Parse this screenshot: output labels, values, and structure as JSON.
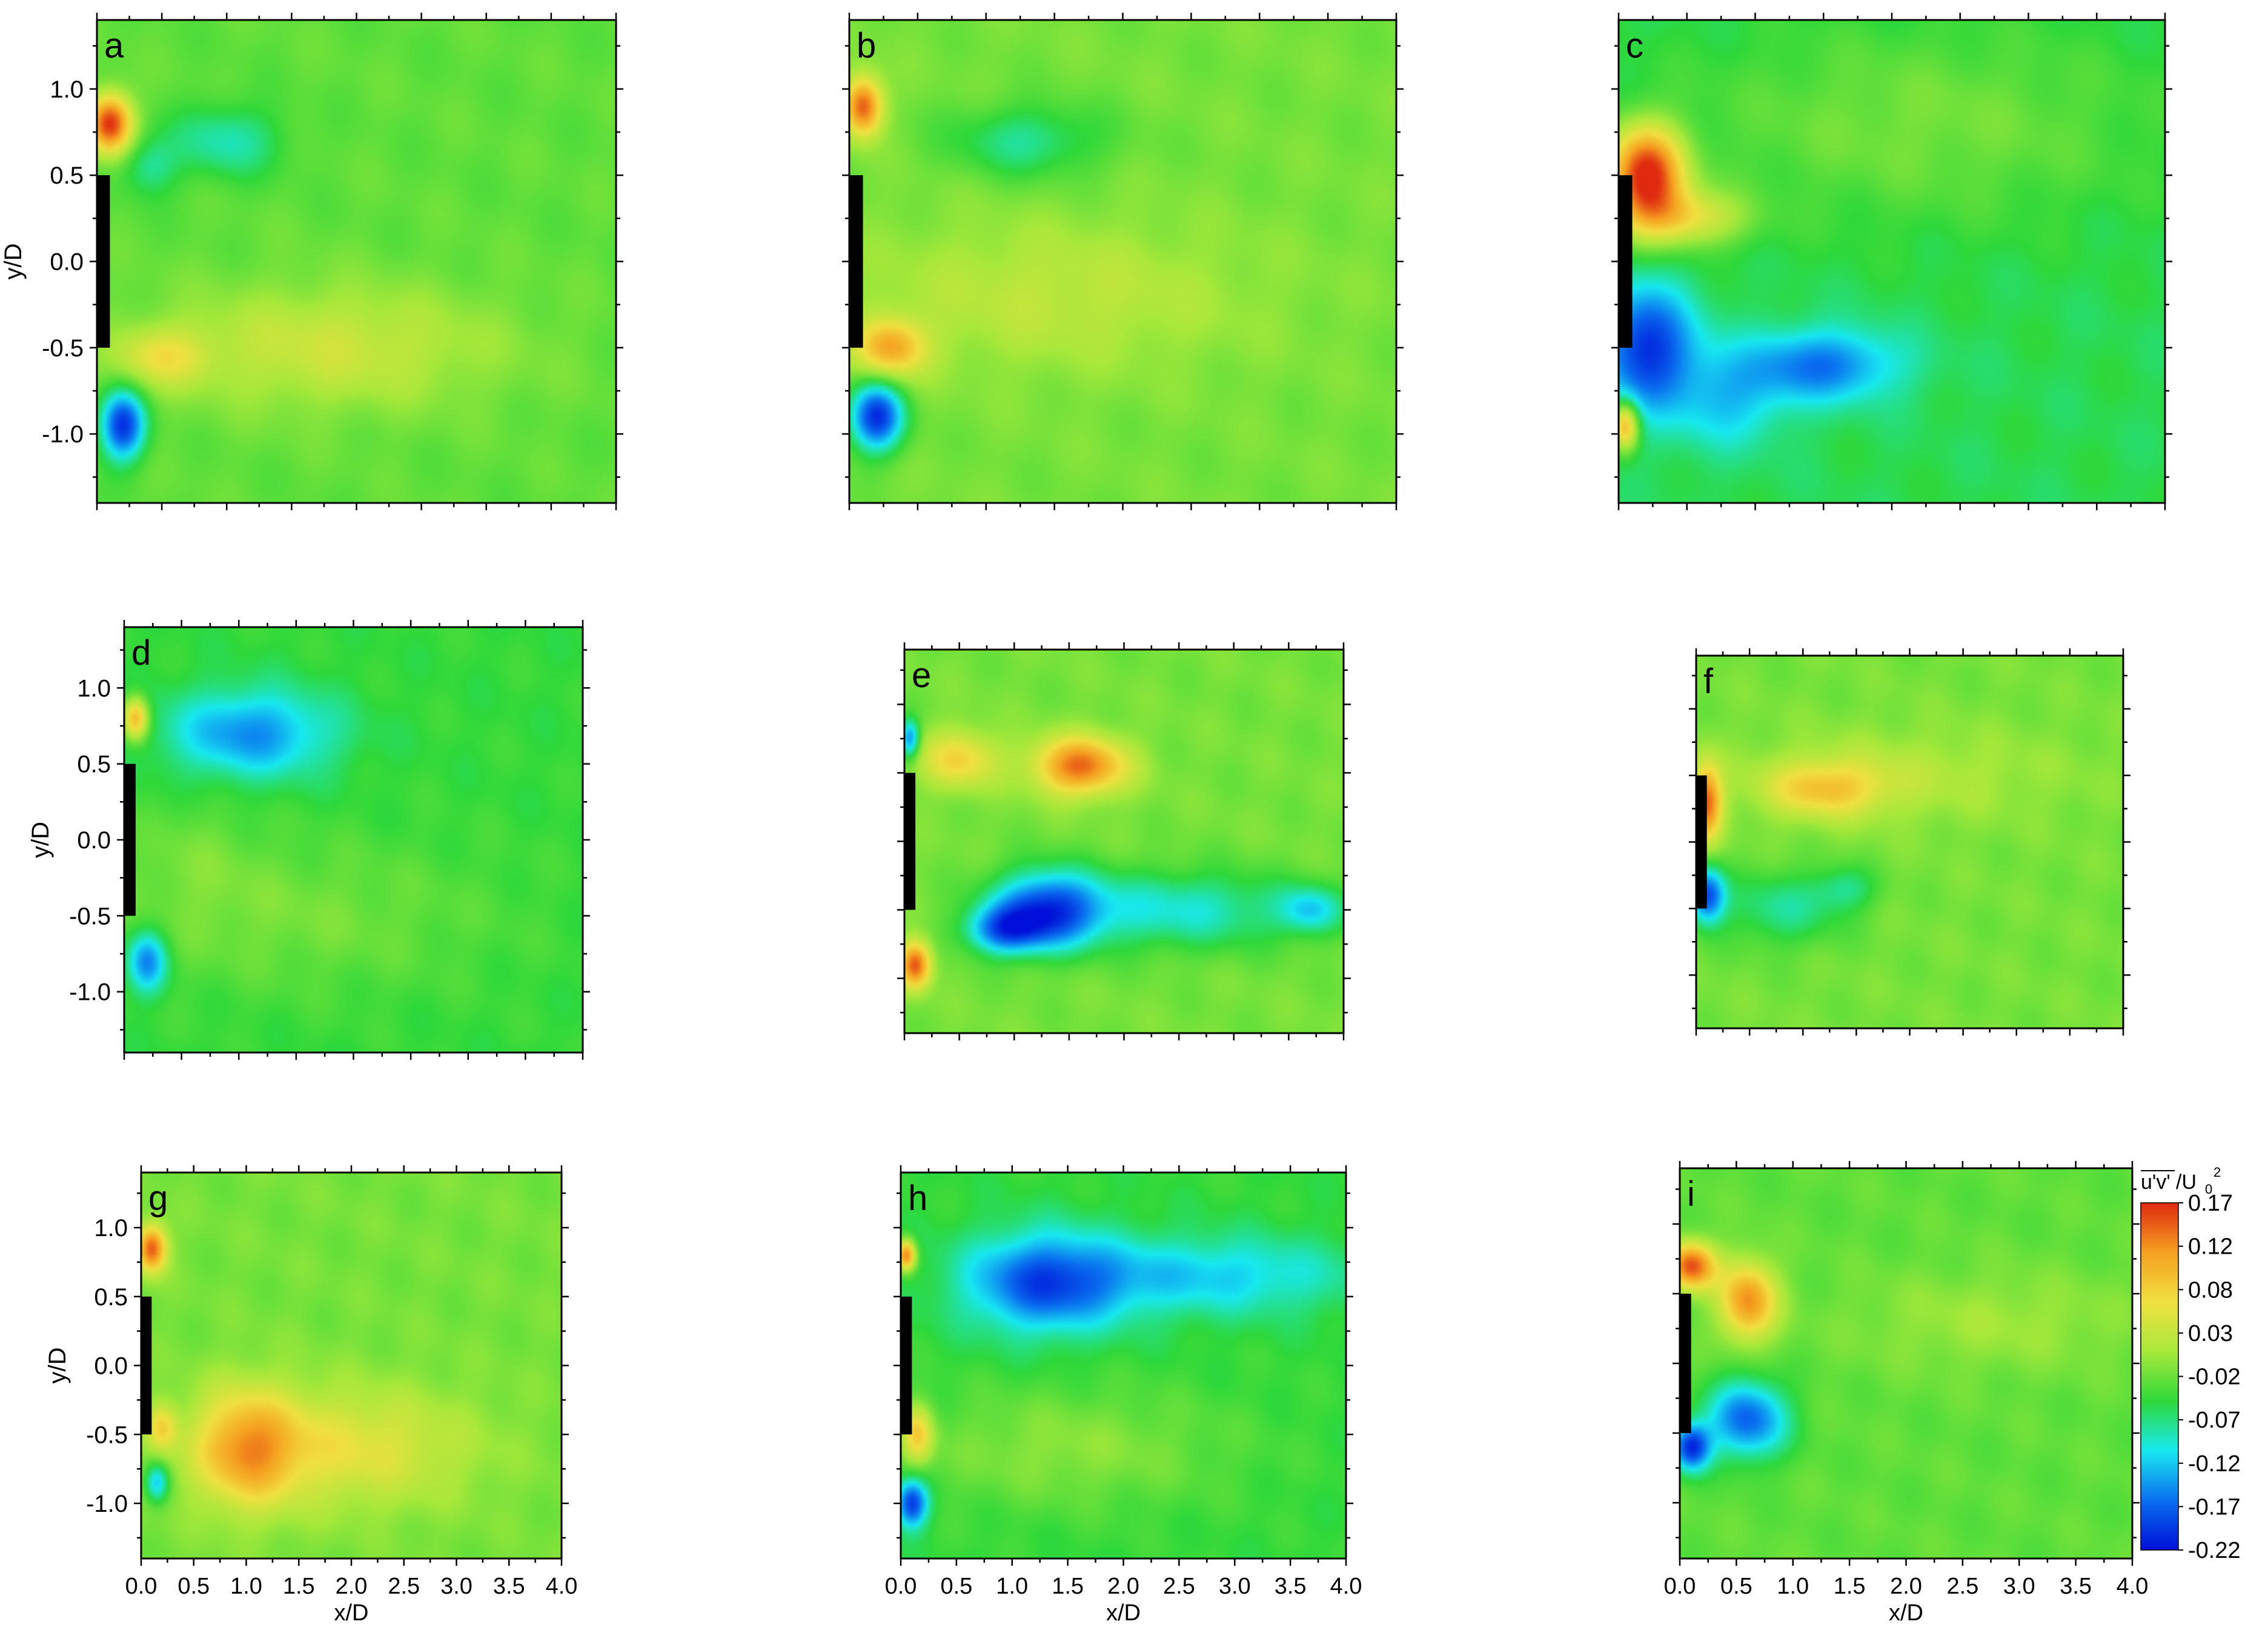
{
  "chart_data": {
    "type": "heatmap",
    "quantity": "u'v'/U0^2",
    "colorbar": {
      "title_main": "u'v'",
      "title_rest": "/U",
      "title_sub": "0",
      "title_sup": "2",
      "ticks": [
        "0.17",
        "0.12",
        "0.08",
        "0.03",
        "-0.02",
        "-0.07",
        "-0.12",
        "-0.17",
        "-0.22"
      ],
      "min": -0.22,
      "max": 0.17,
      "colors": [
        "#0010d8",
        "#0a6ff0",
        "#18e8f0",
        "#2ed83a",
        "#a8e83a",
        "#f0e040",
        "#f5a020",
        "#e02a10"
      ]
    },
    "xlabel": "x/D",
    "ylabel": "y/D",
    "xlim": [
      0,
      4
    ],
    "ylim": [
      -1.4,
      1.4
    ],
    "x_ticks": [
      "0.0",
      "0.5",
      "1.0",
      "1.5",
      "2.0",
      "2.5",
      "3.0",
      "3.5",
      "4.0"
    ],
    "y_ticks": [
      "1.0",
      "0.5",
      "0.0",
      "-0.5",
      "-1.0"
    ],
    "plate": {
      "x": [
        0,
        0.1
      ],
      "y": [
        -0.5,
        0.5
      ]
    },
    "panels": [
      {
        "label": "a",
        "background": -0.03,
        "blobs": [
          {
            "x": 0.1,
            "y": 0.8,
            "v": 0.17,
            "rx": 0.12,
            "ry": 0.12
          },
          {
            "x": 0.2,
            "y": -0.95,
            "v": -0.2,
            "rx": 0.12,
            "ry": 0.14
          },
          {
            "x": 1.0,
            "y": 0.7,
            "v": -0.09,
            "rx": 0.3,
            "ry": 0.15
          },
          {
            "x": 0.4,
            "y": 0.55,
            "v": -0.08,
            "rx": 0.15,
            "ry": 0.12
          },
          {
            "x": 1.8,
            "y": -0.5,
            "v": 0.03,
            "rx": 0.9,
            "ry": 0.25
          },
          {
            "x": 0.5,
            "y": -0.55,
            "v": 0.04,
            "rx": 0.25,
            "ry": 0.12
          }
        ]
      },
      {
        "label": "b",
        "background": -0.02,
        "blobs": [
          {
            "x": 0.1,
            "y": 0.9,
            "v": 0.15,
            "rx": 0.1,
            "ry": 0.12
          },
          {
            "x": 0.3,
            "y": -0.5,
            "v": 0.1,
            "rx": 0.18,
            "ry": 0.12
          },
          {
            "x": 0.2,
            "y": -0.9,
            "v": -0.2,
            "rx": 0.14,
            "ry": 0.14
          },
          {
            "x": 1.3,
            "y": 0.7,
            "v": -0.08,
            "rx": 0.4,
            "ry": 0.15
          },
          {
            "x": 1.5,
            "y": -0.2,
            "v": 0.02,
            "rx": 1.0,
            "ry": 0.3
          }
        ]
      },
      {
        "label": "c",
        "background": -0.06,
        "blobs": [
          {
            "x": 0.2,
            "y": 0.5,
            "v": 0.17,
            "rx": 0.2,
            "ry": 0.2
          },
          {
            "x": 0.5,
            "y": 0.25,
            "v": 0.04,
            "rx": 0.3,
            "ry": 0.12
          },
          {
            "x": 0.2,
            "y": -0.5,
            "v": -0.2,
            "rx": 0.25,
            "ry": 0.25
          },
          {
            "x": 1.5,
            "y": -0.6,
            "v": -0.16,
            "rx": 0.4,
            "ry": 0.15
          },
          {
            "x": 0.8,
            "y": -0.8,
            "v": -0.12,
            "rx": 0.3,
            "ry": 0.2
          },
          {
            "x": 0.05,
            "y": -0.95,
            "v": 0.1,
            "rx": 0.07,
            "ry": 0.1
          },
          {
            "x": 2.2,
            "y": 0.8,
            "v": -0.02,
            "rx": 1.2,
            "ry": 0.4
          }
        ]
      },
      {
        "label": "d",
        "background": -0.05,
        "blobs": [
          {
            "x": 0.1,
            "y": 0.8,
            "v": 0.1,
            "rx": 0.08,
            "ry": 0.1
          },
          {
            "x": 1.1,
            "y": 0.7,
            "v": -0.15,
            "rx": 0.5,
            "ry": 0.2
          },
          {
            "x": 0.2,
            "y": -0.8,
            "v": -0.16,
            "rx": 0.12,
            "ry": 0.14
          },
          {
            "x": 1.5,
            "y": -0.5,
            "v": -0.02,
            "rx": 1.2,
            "ry": 0.35
          },
          {
            "x": 0.6,
            "y": -0.1,
            "v": -0.03,
            "rx": 0.4,
            "ry": 0.3
          }
        ]
      },
      {
        "label": "e",
        "background": -0.02,
        "blobs": [
          {
            "x": 1.6,
            "y": 0.55,
            "v": 0.14,
            "rx": 0.3,
            "ry": 0.15
          },
          {
            "x": 0.5,
            "y": 0.6,
            "v": 0.07,
            "rx": 0.25,
            "ry": 0.15
          },
          {
            "x": 1.3,
            "y": -0.5,
            "v": -0.18,
            "rx": 0.35,
            "ry": 0.2
          },
          {
            "x": 0.9,
            "y": -0.65,
            "v": -0.14,
            "rx": 0.25,
            "ry": 0.12
          },
          {
            "x": 0.1,
            "y": -0.9,
            "v": 0.15,
            "rx": 0.1,
            "ry": 0.12
          },
          {
            "x": 0.05,
            "y": 0.75,
            "v": -0.15,
            "rx": 0.06,
            "ry": 0.1
          },
          {
            "x": 2.5,
            "y": -0.5,
            "v": -0.1,
            "rx": 0.8,
            "ry": 0.2
          },
          {
            "x": 3.7,
            "y": -0.5,
            "v": -0.1,
            "rx": 0.2,
            "ry": 0.12
          }
        ]
      },
      {
        "label": "f",
        "background": -0.02,
        "blobs": [
          {
            "x": 0.1,
            "y": 0.3,
            "v": 0.14,
            "rx": 0.1,
            "ry": 0.2
          },
          {
            "x": 1.2,
            "y": 0.4,
            "v": 0.07,
            "rx": 0.4,
            "ry": 0.15
          },
          {
            "x": 0.1,
            "y": -0.4,
            "v": -0.18,
            "rx": 0.12,
            "ry": 0.15
          },
          {
            "x": 0.8,
            "y": -0.5,
            "v": -0.08,
            "rx": 0.4,
            "ry": 0.2
          },
          {
            "x": 1.4,
            "y": -0.35,
            "v": -0.07,
            "rx": 0.2,
            "ry": 0.12
          },
          {
            "x": 2.0,
            "y": 0.5,
            "v": 0.01,
            "rx": 1.0,
            "ry": 0.25
          }
        ]
      },
      {
        "label": "g",
        "background": -0.02,
        "blobs": [
          {
            "x": 0.1,
            "y": 0.85,
            "v": 0.15,
            "rx": 0.1,
            "ry": 0.12
          },
          {
            "x": 1.0,
            "y": -0.6,
            "v": 0.1,
            "rx": 0.35,
            "ry": 0.3
          },
          {
            "x": 2.0,
            "y": -0.6,
            "v": 0.05,
            "rx": 0.8,
            "ry": 0.3
          },
          {
            "x": 0.15,
            "y": -0.85,
            "v": -0.12,
            "rx": 0.08,
            "ry": 0.1
          },
          {
            "x": 0.2,
            "y": -0.45,
            "v": 0.06,
            "rx": 0.1,
            "ry": 0.12
          }
        ]
      },
      {
        "label": "h",
        "background": -0.05,
        "blobs": [
          {
            "x": 1.3,
            "y": 0.6,
            "v": -0.18,
            "rx": 0.5,
            "ry": 0.25
          },
          {
            "x": 2.8,
            "y": 0.65,
            "v": -0.12,
            "rx": 0.9,
            "ry": 0.2
          },
          {
            "x": 0.05,
            "y": 0.8,
            "v": 0.13,
            "rx": 0.06,
            "ry": 0.08
          },
          {
            "x": 0.1,
            "y": -1.0,
            "v": -0.2,
            "rx": 0.1,
            "ry": 0.12
          },
          {
            "x": 0.15,
            "y": -0.5,
            "v": 0.06,
            "rx": 0.1,
            "ry": 0.15
          },
          {
            "x": 1.5,
            "y": -0.6,
            "v": -0.01,
            "rx": 1.0,
            "ry": 0.3
          }
        ]
      },
      {
        "label": "i",
        "background": -0.03,
        "blobs": [
          {
            "x": 0.1,
            "y": 0.7,
            "v": 0.15,
            "rx": 0.15,
            "ry": 0.12
          },
          {
            "x": 0.6,
            "y": 0.45,
            "v": 0.12,
            "rx": 0.18,
            "ry": 0.2
          },
          {
            "x": 0.6,
            "y": -0.4,
            "v": -0.17,
            "rx": 0.25,
            "ry": 0.2
          },
          {
            "x": 0.1,
            "y": -0.6,
            "v": -0.2,
            "rx": 0.12,
            "ry": 0.12
          },
          {
            "x": 2.8,
            "y": 0.3,
            "v": 0.0,
            "rx": 0.9,
            "ry": 0.25
          }
        ]
      }
    ]
  }
}
